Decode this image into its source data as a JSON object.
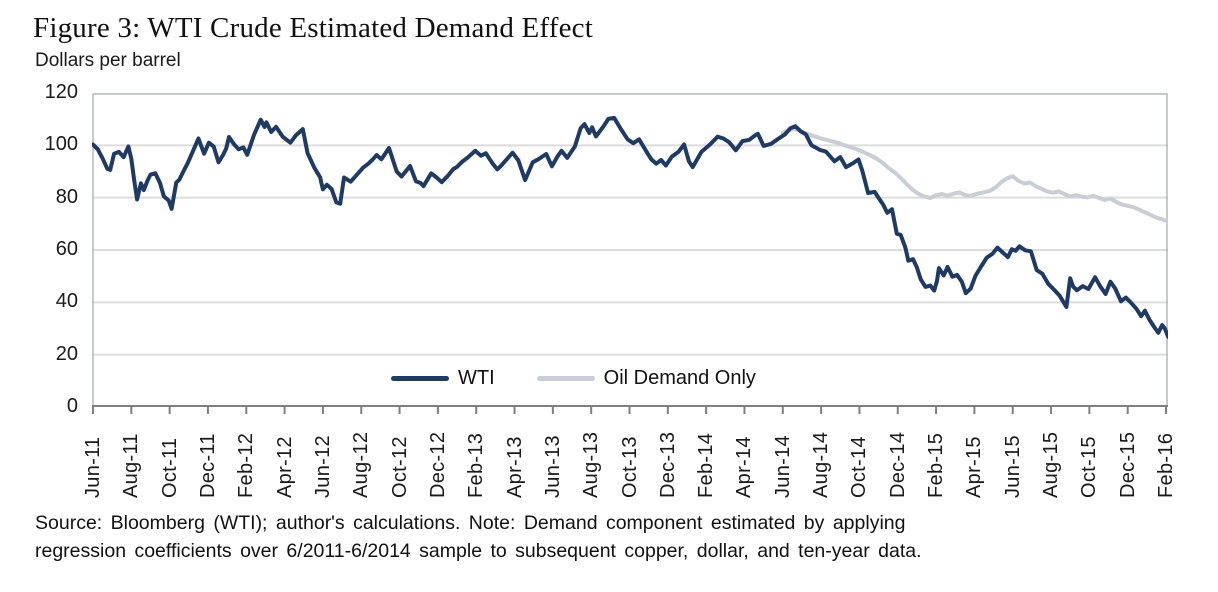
{
  "figure": {
    "title": "Figure 3: WTI Crude Estimated Demand Effect",
    "y_axis_unit": "Dollars per barrel",
    "source_note_lines": [
      "Source: Bloomberg (WTI); author's calculations. Note: Demand component estimated by applying",
      "regression coefficients over 6/2011-6/2014 sample to subsequent copper, dollar, and ten-year data."
    ]
  },
  "chart_data": {
    "type": "line",
    "title": "Figure 3: WTI Crude Estimated Demand Effect",
    "xlabel": "",
    "ylabel": "Dollars per barrel",
    "ylim": [
      0,
      120
    ],
    "y_ticks": [
      0,
      20,
      40,
      60,
      80,
      100,
      120
    ],
    "x_tick_labels": [
      "Jun-11",
      "Aug-11",
      "Oct-11",
      "Dec-11",
      "Feb-12",
      "Apr-12",
      "Jun-12",
      "Aug-12",
      "Oct-12",
      "Dec-12",
      "Feb-13",
      "Apr-13",
      "Jun-13",
      "Aug-13",
      "Oct-13",
      "Dec-13",
      "Feb-14",
      "Apr-14",
      "Jun-14",
      "Aug-14",
      "Oct-14",
      "Dec-14",
      "Feb-15",
      "Apr-15",
      "Jun-15",
      "Aug-15",
      "Oct-15",
      "Dec-15",
      "Feb-16"
    ],
    "x_months_per_tick": 2,
    "x_range_months_from_jun_2011": [
      0,
      56
    ],
    "grid": "horizontal",
    "grid_color": "#dcdcdc",
    "axis_color": "#7f7f7f",
    "border_color": "#b4b8bc",
    "legend_position": "inside-bottom-center",
    "series": [
      {
        "name": "Oil Demand Only",
        "color": "#c9ced6",
        "points": [
          [
            36.0,
            104.8
          ],
          [
            36.3,
            105.8
          ],
          [
            36.6,
            106.3
          ],
          [
            36.9,
            105.4
          ],
          [
            37.2,
            104.6
          ],
          [
            37.5,
            103.8
          ],
          [
            37.8,
            103.1
          ],
          [
            38.1,
            102.4
          ],
          [
            38.5,
            101.7
          ],
          [
            38.9,
            100.9
          ],
          [
            39.2,
            100.1
          ],
          [
            39.5,
            99.4
          ],
          [
            39.9,
            98.4
          ],
          [
            40.2,
            97.4
          ],
          [
            40.6,
            96.1
          ],
          [
            40.9,
            94.9
          ],
          [
            41.2,
            93.4
          ],
          [
            41.5,
            91.4
          ],
          [
            41.9,
            89.3
          ],
          [
            42.2,
            87.2
          ],
          [
            42.5,
            84.9
          ],
          [
            42.8,
            82.9
          ],
          [
            43.1,
            81.4
          ],
          [
            43.4,
            80.4
          ],
          [
            43.7,
            79.9
          ],
          [
            44.0,
            80.9
          ],
          [
            44.3,
            81.4
          ],
          [
            44.6,
            80.7
          ],
          [
            44.9,
            81.5
          ],
          [
            45.2,
            82.0
          ],
          [
            45.5,
            81.1
          ],
          [
            45.8,
            80.7
          ],
          [
            46.1,
            81.4
          ],
          [
            46.4,
            81.9
          ],
          [
            46.8,
            82.6
          ],
          [
            47.1,
            83.9
          ],
          [
            47.4,
            85.9
          ],
          [
            47.7,
            87.4
          ],
          [
            48.0,
            88.2
          ],
          [
            48.3,
            86.4
          ],
          [
            48.6,
            85.4
          ],
          [
            48.9,
            85.8
          ],
          [
            49.2,
            84.4
          ],
          [
            49.5,
            83.4
          ],
          [
            49.8,
            82.4
          ],
          [
            50.1,
            81.9
          ],
          [
            50.4,
            82.4
          ],
          [
            50.7,
            81.4
          ],
          [
            51.0,
            80.4
          ],
          [
            51.3,
            80.9
          ],
          [
            51.6,
            80.4
          ],
          [
            51.9,
            80.1
          ],
          [
            52.2,
            80.7
          ],
          [
            52.5,
            79.9
          ],
          [
            52.8,
            79.1
          ],
          [
            53.1,
            79.7
          ],
          [
            53.4,
            78.4
          ],
          [
            53.7,
            77.4
          ],
          [
            54.0,
            76.9
          ],
          [
            54.3,
            76.4
          ],
          [
            54.6,
            75.4
          ],
          [
            54.9,
            74.4
          ],
          [
            55.2,
            73.4
          ],
          [
            55.5,
            72.4
          ],
          [
            55.8,
            71.7
          ],
          [
            56.0,
            71.2
          ],
          [
            56.15,
            70.8
          ],
          [
            56.35,
            71.9
          ]
        ]
      },
      {
        "name": "WTI",
        "color": "#1f3a63",
        "points": [
          [
            0,
            100.3
          ],
          [
            0.25,
            98.5
          ],
          [
            0.5,
            95.0
          ],
          [
            0.75,
            91.0
          ],
          [
            0.9,
            90.6
          ],
          [
            1.1,
            96.8
          ],
          [
            1.35,
            97.5
          ],
          [
            1.6,
            95.5
          ],
          [
            1.85,
            99.6
          ],
          [
            2.0,
            94.9
          ],
          [
            2.15,
            86.6
          ],
          [
            2.3,
            79.3
          ],
          [
            2.5,
            85.5
          ],
          [
            2.65,
            82.9
          ],
          [
            2.85,
            86.6
          ],
          [
            3.0,
            88.8
          ],
          [
            3.25,
            89.3
          ],
          [
            3.5,
            85.5
          ],
          [
            3.7,
            80.5
          ],
          [
            3.95,
            78.9
          ],
          [
            4.1,
            75.7
          ],
          [
            4.35,
            85.8
          ],
          [
            4.5,
            86.8
          ],
          [
            4.75,
            90.5
          ],
          [
            4.95,
            93.3
          ],
          [
            5.2,
            97.5
          ],
          [
            5.5,
            102.6
          ],
          [
            5.8,
            96.8
          ],
          [
            6.05,
            101.0
          ],
          [
            6.3,
            99.5
          ],
          [
            6.55,
            93.5
          ],
          [
            6.8,
            96.5
          ],
          [
            6.95,
            98.8
          ],
          [
            7.1,
            103.2
          ],
          [
            7.35,
            100.5
          ],
          [
            7.6,
            98.5
          ],
          [
            7.85,
            99.2
          ],
          [
            8.05,
            96.4
          ],
          [
            8.4,
            104.0
          ],
          [
            8.75,
            109.8
          ],
          [
            8.95,
            107.0
          ],
          [
            9.05,
            108.8
          ],
          [
            9.3,
            105.1
          ],
          [
            9.55,
            107.1
          ],
          [
            9.9,
            103.3
          ],
          [
            10.3,
            101.0
          ],
          [
            10.6,
            103.9
          ],
          [
            10.95,
            106.2
          ],
          [
            11.2,
            97.0
          ],
          [
            11.55,
            91.5
          ],
          [
            11.85,
            87.8
          ],
          [
            12.0,
            83.2
          ],
          [
            12.2,
            84.9
          ],
          [
            12.45,
            83.3
          ],
          [
            12.7,
            78.2
          ],
          [
            12.9,
            77.7
          ],
          [
            13.1,
            87.7
          ],
          [
            13.45,
            86.1
          ],
          [
            13.8,
            89.0
          ],
          [
            14.1,
            91.5
          ],
          [
            14.35,
            92.9
          ],
          [
            14.6,
            94.6
          ],
          [
            14.8,
            96.3
          ],
          [
            15.05,
            94.7
          ],
          [
            15.45,
            99.0
          ],
          [
            15.85,
            90.0
          ],
          [
            16.1,
            88.1
          ],
          [
            16.35,
            90.3
          ],
          [
            16.55,
            92.1
          ],
          [
            16.85,
            86.3
          ],
          [
            17.1,
            85.6
          ],
          [
            17.25,
            84.4
          ],
          [
            17.65,
            89.3
          ],
          [
            17.9,
            87.9
          ],
          [
            18.2,
            85.9
          ],
          [
            18.5,
            88.2
          ],
          [
            18.8,
            90.9
          ],
          [
            19.0,
            91.8
          ],
          [
            19.25,
            93.6
          ],
          [
            19.6,
            95.6
          ],
          [
            19.95,
            97.9
          ],
          [
            20.25,
            96.0
          ],
          [
            20.5,
            97.0
          ],
          [
            20.85,
            93.1
          ],
          [
            21.1,
            90.8
          ],
          [
            21.3,
            92.2
          ],
          [
            21.9,
            97.2
          ],
          [
            22.2,
            94.2
          ],
          [
            22.55,
            86.7
          ],
          [
            22.95,
            93.5
          ],
          [
            23.25,
            94.7
          ],
          [
            23.65,
            96.7
          ],
          [
            23.95,
            92.0
          ],
          [
            24.25,
            95.8
          ],
          [
            24.45,
            97.9
          ],
          [
            24.75,
            95.2
          ],
          [
            25.15,
            99.6
          ],
          [
            25.45,
            106.5
          ],
          [
            25.65,
            108.1
          ],
          [
            25.9,
            104.7
          ],
          [
            26.05,
            106.9
          ],
          [
            26.25,
            103.4
          ],
          [
            26.65,
            107.3
          ],
          [
            26.9,
            110.1
          ],
          [
            27.2,
            110.5
          ],
          [
            27.55,
            106.2
          ],
          [
            27.9,
            102.3
          ],
          [
            28.2,
            100.8
          ],
          [
            28.5,
            102.3
          ],
          [
            28.95,
            96.8
          ],
          [
            29.15,
            94.6
          ],
          [
            29.4,
            93.0
          ],
          [
            29.65,
            94.4
          ],
          [
            29.9,
            92.3
          ],
          [
            30.2,
            95.6
          ],
          [
            30.55,
            97.5
          ],
          [
            30.85,
            100.3
          ],
          [
            31.1,
            93.9
          ],
          [
            31.3,
            91.7
          ],
          [
            31.75,
            97.5
          ],
          [
            32.2,
            100.3
          ],
          [
            32.6,
            103.3
          ],
          [
            32.9,
            102.6
          ],
          [
            33.2,
            101.2
          ],
          [
            33.55,
            98.1
          ],
          [
            33.9,
            101.6
          ],
          [
            34.25,
            102.1
          ],
          [
            34.55,
            103.8
          ],
          [
            34.7,
            104.4
          ],
          [
            35.0,
            99.8
          ],
          [
            35.4,
            100.6
          ],
          [
            35.8,
            102.7
          ],
          [
            36.1,
            104.1
          ],
          [
            36.4,
            106.5
          ],
          [
            36.65,
            107.3
          ],
          [
            36.95,
            105.3
          ],
          [
            37.2,
            104.2
          ],
          [
            37.5,
            100.0
          ],
          [
            37.95,
            98.2
          ],
          [
            38.25,
            97.6
          ],
          [
            38.7,
            93.9
          ],
          [
            39.0,
            95.5
          ],
          [
            39.3,
            91.7
          ],
          [
            39.65,
            93.1
          ],
          [
            39.95,
            94.6
          ],
          [
            40.15,
            90.3
          ],
          [
            40.45,
            81.8
          ],
          [
            40.8,
            82.2
          ],
          [
            40.95,
            80.5
          ],
          [
            41.25,
            77.2
          ],
          [
            41.45,
            74.2
          ],
          [
            41.7,
            75.6
          ],
          [
            41.95,
            66.2
          ],
          [
            42.15,
            65.8
          ],
          [
            42.4,
            60.9
          ],
          [
            42.55,
            55.9
          ],
          [
            42.8,
            56.5
          ],
          [
            43.0,
            53.3
          ],
          [
            43.2,
            48.8
          ],
          [
            43.45,
            45.9
          ],
          [
            43.7,
            46.4
          ],
          [
            43.9,
            44.5
          ],
          [
            44.05,
            48.2
          ],
          [
            44.15,
            53.1
          ],
          [
            44.4,
            50.3
          ],
          [
            44.6,
            53.5
          ],
          [
            44.85,
            49.8
          ],
          [
            45.1,
            50.5
          ],
          [
            45.35,
            47.8
          ],
          [
            45.55,
            43.5
          ],
          [
            45.8,
            45.2
          ],
          [
            46.05,
            50.1
          ],
          [
            46.35,
            53.7
          ],
          [
            46.65,
            57.1
          ],
          [
            46.95,
            58.6
          ],
          [
            47.2,
            60.9
          ],
          [
            47.5,
            58.9
          ],
          [
            47.75,
            57.3
          ],
          [
            47.95,
            60.3
          ],
          [
            48.15,
            59.7
          ],
          [
            48.35,
            61.4
          ],
          [
            48.65,
            59.9
          ],
          [
            48.95,
            59.5
          ],
          [
            49.25,
            52.3
          ],
          [
            49.55,
            50.9
          ],
          [
            49.85,
            47.1
          ],
          [
            50.15,
            44.9
          ],
          [
            50.45,
            42.5
          ],
          [
            50.8,
            38.2
          ],
          [
            51.0,
            49.2
          ],
          [
            51.15,
            46.0
          ],
          [
            51.35,
            44.6
          ],
          [
            51.65,
            46.2
          ],
          [
            51.95,
            45.1
          ],
          [
            52.3,
            49.6
          ],
          [
            52.55,
            46.3
          ],
          [
            52.85,
            43.2
          ],
          [
            53.1,
            47.9
          ],
          [
            53.35,
            45.3
          ],
          [
            53.65,
            40.4
          ],
          [
            53.9,
            41.8
          ],
          [
            54.15,
            40.0
          ],
          [
            54.45,
            37.6
          ],
          [
            54.7,
            34.7
          ],
          [
            54.9,
            36.8
          ],
          [
            55.15,
            33.2
          ],
          [
            55.4,
            30.4
          ],
          [
            55.6,
            28.4
          ],
          [
            55.8,
            31.3
          ],
          [
            55.95,
            29.9
          ],
          [
            56.1,
            27.0
          ],
          [
            56.2,
            26.2
          ],
          [
            56.35,
            29.6
          ]
        ]
      }
    ],
    "legend": [
      {
        "label": "WTI",
        "color": "#1f3a63"
      },
      {
        "label": "Oil Demand Only",
        "color": "#c9ced6"
      }
    ]
  }
}
